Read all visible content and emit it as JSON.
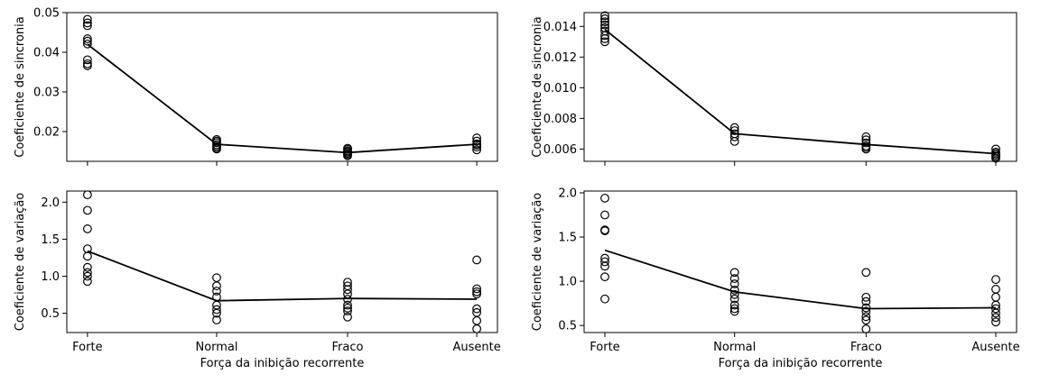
{
  "chart_data": [
    {
      "type": "scatter",
      "panel": "top-left",
      "categories": [
        "Forte",
        "Normal",
        "Fraco",
        "Ausente"
      ],
      "ylabel": "Coeficiente de sincronia",
      "xlabel": "",
      "ylim": [
        0.0125,
        0.05
      ],
      "yticks": [
        0.02,
        0.03,
        0.04,
        0.05
      ],
      "ytick_labels": [
        "0.02",
        "0.03",
        "0.04",
        "0.05"
      ],
      "show_xtick_labels": false,
      "points": [
        [
          0.0483,
          0.0474,
          0.0467,
          0.0434,
          0.0428,
          0.0421,
          0.0381,
          0.0371,
          0.0366
        ],
        [
          0.018,
          0.0176,
          0.0172,
          0.0167,
          0.0163,
          0.0159,
          0.0156
        ],
        [
          0.0158,
          0.0155,
          0.0151,
          0.0148,
          0.0145,
          0.0142,
          0.0139
        ],
        [
          0.0184,
          0.0176,
          0.0169,
          0.0166,
          0.0161,
          0.0154
        ]
      ],
      "mean_line": [
        0.042,
        0.0168,
        0.0147,
        0.0168
      ]
    },
    {
      "type": "scatter",
      "panel": "top-right",
      "categories": [
        "Forte",
        "Normal",
        "Fraco",
        "Ausente"
      ],
      "ylabel": "Coeficiente de sincronia",
      "xlabel": "",
      "ylim": [
        0.0052,
        0.0149
      ],
      "yticks": [
        0.006,
        0.008,
        0.01,
        0.012,
        0.014
      ],
      "ytick_labels": [
        "0.006",
        "0.008",
        "0.010",
        "0.012",
        "0.014"
      ],
      "show_xtick_labels": false,
      "points": [
        [
          0.0147,
          0.0145,
          0.0143,
          0.0141,
          0.0139,
          0.0137,
          0.0134,
          0.0132,
          0.013
        ],
        [
          0.0074,
          0.0072,
          0.007,
          0.0068,
          0.0065
        ],
        [
          0.0068,
          0.0066,
          0.0064,
          0.0062,
          0.0061,
          0.006
        ],
        [
          0.006,
          0.0058,
          0.0057,
          0.0056,
          0.0055,
          0.0054
        ]
      ],
      "mean_line": [
        0.0138,
        0.007,
        0.0063,
        0.0057
      ]
    },
    {
      "type": "scatter",
      "panel": "bottom-left",
      "categories": [
        "Forte",
        "Normal",
        "Fraco",
        "Ausente"
      ],
      "ylabel": "Coeficiente de variação",
      "xlabel": "Força da inibição recorrente",
      "ylim": [
        0.24,
        2.15
      ],
      "yticks": [
        0.5,
        1.0,
        1.5,
        2.0
      ],
      "ytick_labels": [
        "0.5",
        "1.0",
        "1.5",
        "2.0"
      ],
      "show_xtick_labels": true,
      "points": [
        [
          2.1,
          1.89,
          1.64,
          1.37,
          1.27,
          1.12,
          1.05,
          1.0,
          0.93
        ],
        [
          0.98,
          0.87,
          0.8,
          0.72,
          0.61,
          0.55,
          0.5,
          0.41
        ],
        [
          0.92,
          0.87,
          0.82,
          0.76,
          0.69,
          0.61,
          0.57,
          0.53,
          0.45
        ],
        [
          1.22,
          0.83,
          0.79,
          0.76,
          0.56,
          0.51,
          0.4,
          0.29
        ]
      ],
      "mean_line": [
        1.34,
        0.67,
        0.7,
        0.69
      ]
    },
    {
      "type": "scatter",
      "panel": "bottom-right",
      "categories": [
        "Forte",
        "Normal",
        "Fraco",
        "Ausente"
      ],
      "ylabel": "Coeficiente de variação",
      "xlabel": "Força da inibição recorrente",
      "ylim": [
        0.42,
        2.02
      ],
      "yticks": [
        0.5,
        1.0,
        1.5,
        2.0
      ],
      "ytick_labels": [
        "0.5",
        "1.0",
        "1.5",
        "2.0"
      ],
      "show_xtick_labels": true,
      "points": [
        [
          1.94,
          1.75,
          1.58,
          1.57,
          1.26,
          1.22,
          1.17,
          1.05,
          0.8
        ],
        [
          1.1,
          1.03,
          0.97,
          0.9,
          0.85,
          0.8,
          0.73,
          0.69,
          0.66
        ],
        [
          1.1,
          0.82,
          0.77,
          0.7,
          0.66,
          0.6,
          0.56,
          0.46
        ],
        [
          1.02,
          0.91,
          0.82,
          0.73,
          0.69,
          0.64,
          0.59,
          0.54
        ]
      ],
      "mean_line": [
        1.35,
        0.88,
        0.69,
        0.7
      ]
    }
  ]
}
